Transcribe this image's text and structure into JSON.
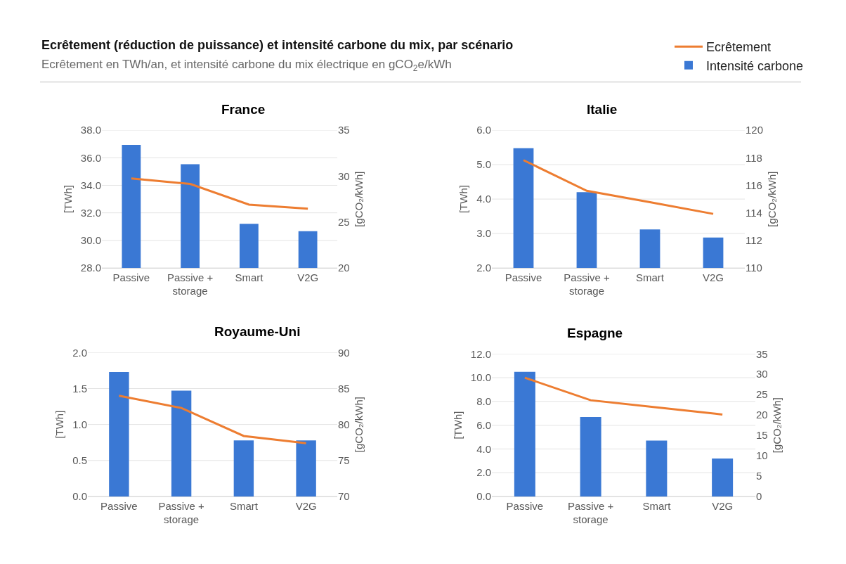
{
  "chart_data": [
    {
      "type": "other",
      "title": "Ecrêtement (réduction de puissance) et intensité carbone du mix, par scénario",
      "subtitle": "Ecrêtement en TWh/an, et intensité carbone du mix électrique en gCO$_{2}$e/kWh"
    },
    {
      "type": "bar",
      "title": "France",
      "categories": [
        "Passive",
        "Passive + storage",
        "Smart",
        "V2G"
      ],
      "series": [
        {
          "axis": "y2",
          "name": "Intensité carbone",
          "color": "#3a78d4",
          "values": [
            33.4,
            31.3,
            24.8,
            24.0
          ]
        },
        {
          "type": "line",
          "name": "Ecrêtement",
          "color": "#ed7d31",
          "values": [
            34.5,
            34.1,
            32.6,
            32.3
          ]
        }
      ],
      "ylabel": "[TWh]",
      "y2label": "[gCO₂/kWh]",
      "ylim": [
        28,
        38
      ],
      "yticks": [
        {
          "value": 28,
          "label": "28.0"
        },
        {
          "value": 30,
          "label": "30.0"
        },
        {
          "value": 32,
          "label": "32.0"
        },
        {
          "value": 34,
          "label": "34.0"
        },
        {
          "value": 36,
          "label": "36.0"
        },
        {
          "value": 38,
          "label": "38.0"
        }
      ],
      "y2lim": [
        20,
        35
      ],
      "y2ticks": [
        20,
        25,
        30,
        35
      ],
      "grid": "y",
      "legend": "top right"
    },
    {
      "type": "bar",
      "title": "Italie",
      "categories": [
        "Passive",
        "Passive + storage",
        "Smart",
        "V2G"
      ],
      "series": [
        {
          "axis": "y2",
          "color": "#3a78d4",
          "values": [
            118.7,
            115.5,
            112.8,
            112.2
          ]
        },
        {
          "type": "line",
          "color": "#ed7d31",
          "values": [
            5.13,
            4.24,
            3.91,
            3.57
          ]
        }
      ],
      "ylabel": "[TWh]",
      "y2label": "[gCO₂/kWh]",
      "ylim": [
        2,
        6
      ],
      "yticks": [
        {
          "value": 2,
          "label": "2.0"
        },
        {
          "value": 3,
          "label": "3.0"
        },
        {
          "value": 4,
          "label": "4.0"
        },
        {
          "value": 5,
          "label": "5.0"
        },
        {
          "value": 6,
          "label": "6.0"
        }
      ],
      "y2lim": [
        110,
        120
      ],
      "y2ticks": [
        110,
        112,
        114,
        116,
        118,
        120
      ],
      "grid": "y"
    },
    {
      "type": "bar",
      "title": "Royaume-Uni",
      "categories": [
        "Passive",
        "Passive + storage",
        "Smart",
        "V2G"
      ],
      "series": [
        {
          "axis": "y2",
          "color": "#3a78d4",
          "values": [
            87.3,
            84.7,
            77.8,
            77.8
          ]
        },
        {
          "type": "line",
          "color": "#ed7d31",
          "values": [
            1.4,
            1.23,
            0.84,
            0.74
          ]
        }
      ],
      "ylabel": "[TWh]",
      "y2label": "[gCO₂/kWh]",
      "ylim": [
        0,
        2
      ],
      "yticks": [
        {
          "value": 0,
          "label": "0.0"
        },
        {
          "value": 0.5,
          "label": "0.5"
        },
        {
          "value": 1,
          "label": "1.0"
        },
        {
          "value": 1.5,
          "label": "1.5"
        },
        {
          "value": 2,
          "label": "2.0"
        }
      ],
      "y2lim": [
        70,
        90
      ],
      "y2ticks": [
        70,
        75,
        80,
        85,
        90
      ],
      "grid": "y"
    },
    {
      "type": "bar",
      "title": "Espagne",
      "categories": [
        "Passive",
        "Passive + storage",
        "Smart",
        "V2G"
      ],
      "series": [
        {
          "axis": "y2",
          "color": "#3a78d4",
          "values": [
            30.6,
            19.5,
            13.7,
            9.3
          ]
        },
        {
          "type": "line",
          "color": "#ed7d31",
          "values": [
            10.0,
            8.1,
            7.5,
            6.9
          ]
        }
      ],
      "ylabel": "[TWh]",
      "y2label": "[gCO₂/kWh]",
      "ylim": [
        0,
        12
      ],
      "yticks": [
        {
          "value": 0,
          "label": "0.0"
        },
        {
          "value": 2,
          "label": "2.0"
        },
        {
          "value": 4,
          "label": "4.0"
        },
        {
          "value": 6,
          "label": "6.0"
        },
        {
          "value": 8,
          "label": "8.0"
        },
        {
          "value": 10,
          "label": "10.0"
        },
        {
          "value": 12,
          "label": "12.0"
        }
      ],
      "y2lim": [
        0,
        35
      ],
      "y2ticks": [
        0,
        5,
        10,
        15,
        20,
        25,
        30,
        35
      ],
      "grid": "y"
    }
  ]
}
